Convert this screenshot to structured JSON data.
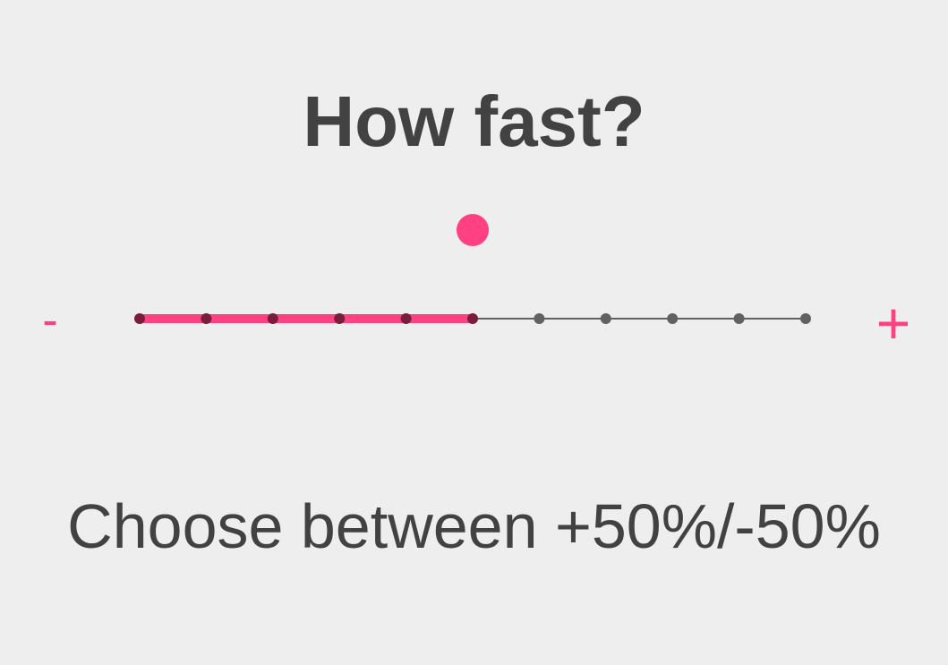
{
  "title": "How fast?",
  "slider": {
    "min_label": "-",
    "max_label": "+",
    "min": 0,
    "max": 10,
    "step": 1,
    "value": 5,
    "accent_color": "#ff4081",
    "track_color": "#616161"
  },
  "caption": "Choose between +50%/-50%"
}
